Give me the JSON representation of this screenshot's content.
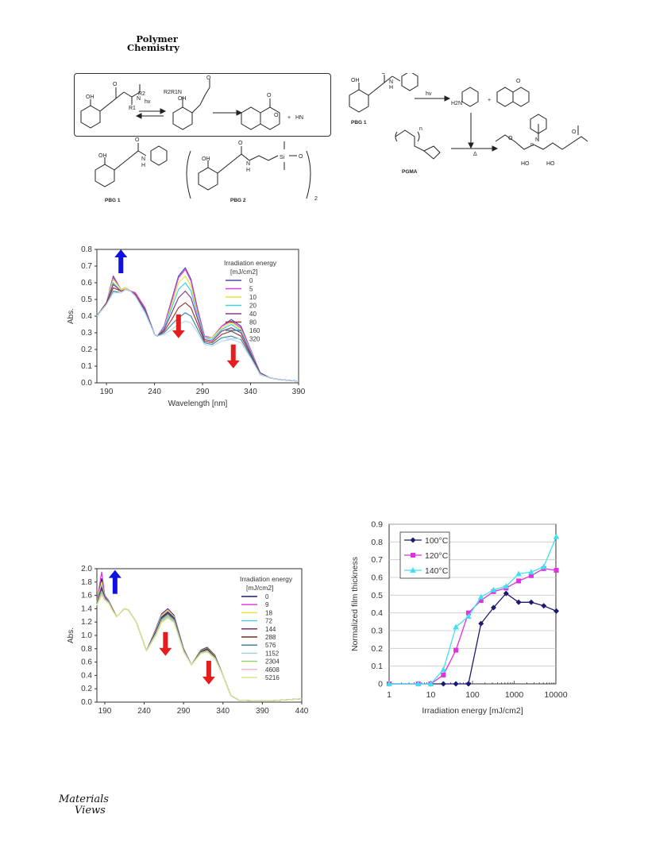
{
  "journal": {
    "line1": "Polymer",
    "line2": "Chemistry"
  },
  "scheme1": {
    "hv": "hv",
    "r2": "R2",
    "r1": "R1",
    "r2r1n": "R2R1N",
    "oh": "OH",
    "oh2": "OH",
    "o1": "O",
    "o2": "O",
    "o3": "O",
    "o4": "O",
    "n": "N",
    "plus": "+",
    "hn": "HN",
    "pbg1_oh": "OH",
    "pbg1_h": "H",
    "pbg1_n": "N",
    "pbg1_o": "O",
    "pbg1_label": "PBG 1",
    "pbg2_oh": "OH",
    "pbg2_h": "H",
    "pbg2_n": "N",
    "pbg2_o": "O",
    "pbg2_si": "Si",
    "pbg2_osi": "O",
    "pbg2_sub": "2",
    "pbg2_label": "PBG 2"
  },
  "scheme2": {
    "hv": "hv",
    "oh": "OH",
    "o": "O",
    "h": "H",
    "n": "N",
    "pbg1": "PBG 1",
    "h2n": "H2N",
    "plus": "+",
    "o2": "O",
    "pgma": "PGMA",
    "delta": "Δ",
    "n1": "n",
    "n2": "n",
    "ho1": "HO",
    "ho2": "HO",
    "n3": "N",
    "o3": "O",
    "o4": "O"
  },
  "logo": {
    "line1": "Materials",
    "line2": "Views"
  },
  "chart_data": [
    {
      "type": "line",
      "title": "",
      "xlabel": "Wavelength [nm]",
      "ylabel": "Abs.",
      "xlim": [
        180,
        390
      ],
      "ylim": [
        0,
        0.8
      ],
      "xticks": [
        190,
        240,
        290,
        340,
        390
      ],
      "yticks": [
        0,
        0.1,
        0.2,
        0.3,
        0.4,
        0.5,
        0.6,
        0.7,
        0.8
      ],
      "legend_title": "Irradiation energy [mJ/cm2]",
      "legend_placement": "top-right",
      "x": [
        180,
        190,
        197,
        205,
        210,
        215,
        220,
        230,
        240,
        243,
        250,
        258,
        265,
        272,
        278,
        285,
        292,
        300,
        310,
        320,
        330,
        340,
        350,
        360,
        370,
        390
      ],
      "series": [
        {
          "name": "0",
          "color": "#4b4ba8",
          "values": [
            0.4,
            0.48,
            0.64,
            0.56,
            0.57,
            0.55,
            0.54,
            0.45,
            0.29,
            0.28,
            0.34,
            0.5,
            0.64,
            0.69,
            0.62,
            0.44,
            0.28,
            0.27,
            0.34,
            0.38,
            0.34,
            0.2,
            0.06,
            0.03,
            0.02,
            0.01
          ]
        },
        {
          "name": "5",
          "color": "#e040e0",
          "values": [
            0.4,
            0.48,
            0.63,
            0.56,
            0.57,
            0.55,
            0.54,
            0.45,
            0.29,
            0.28,
            0.34,
            0.49,
            0.63,
            0.68,
            0.61,
            0.43,
            0.28,
            0.27,
            0.34,
            0.37,
            0.33,
            0.2,
            0.06,
            0.03,
            0.02,
            0.01
          ]
        },
        {
          "name": "10",
          "color": "#e6e63a",
          "values": [
            0.4,
            0.48,
            0.62,
            0.56,
            0.57,
            0.55,
            0.53,
            0.44,
            0.29,
            0.28,
            0.33,
            0.47,
            0.6,
            0.64,
            0.58,
            0.41,
            0.27,
            0.27,
            0.33,
            0.36,
            0.32,
            0.19,
            0.06,
            0.03,
            0.02,
            0.01
          ]
        },
        {
          "name": "20",
          "color": "#40d0e8",
          "values": [
            0.4,
            0.48,
            0.6,
            0.55,
            0.56,
            0.55,
            0.53,
            0.44,
            0.29,
            0.28,
            0.33,
            0.45,
            0.56,
            0.6,
            0.55,
            0.4,
            0.27,
            0.26,
            0.32,
            0.35,
            0.31,
            0.19,
            0.06,
            0.03,
            0.02,
            0.01
          ]
        },
        {
          "name": "40",
          "color": "#8a3c8a",
          "values": [
            0.4,
            0.48,
            0.59,
            0.55,
            0.56,
            0.55,
            0.53,
            0.44,
            0.29,
            0.28,
            0.32,
            0.42,
            0.51,
            0.55,
            0.51,
            0.38,
            0.26,
            0.25,
            0.31,
            0.33,
            0.3,
            0.18,
            0.06,
            0.03,
            0.02,
            0.01
          ]
        },
        {
          "name": "80",
          "color": "#9a3c3c",
          "values": [
            0.4,
            0.48,
            0.57,
            0.55,
            0.56,
            0.55,
            0.53,
            0.43,
            0.29,
            0.28,
            0.31,
            0.38,
            0.45,
            0.48,
            0.45,
            0.35,
            0.25,
            0.24,
            0.29,
            0.31,
            0.28,
            0.17,
            0.05,
            0.03,
            0.02,
            0.01
          ]
        },
        {
          "name": "160",
          "color": "#3a8aa0",
          "values": [
            0.4,
            0.47,
            0.55,
            0.54,
            0.56,
            0.55,
            0.52,
            0.43,
            0.29,
            0.28,
            0.3,
            0.35,
            0.39,
            0.42,
            0.4,
            0.32,
            0.24,
            0.23,
            0.27,
            0.28,
            0.26,
            0.16,
            0.05,
            0.03,
            0.02,
            0.01
          ]
        },
        {
          "name": "320",
          "color": "#b8d8f0",
          "values": [
            0.4,
            0.47,
            0.54,
            0.54,
            0.56,
            0.55,
            0.52,
            0.42,
            0.29,
            0.28,
            0.29,
            0.32,
            0.35,
            0.37,
            0.36,
            0.3,
            0.23,
            0.22,
            0.25,
            0.26,
            0.24,
            0.15,
            0.05,
            0.03,
            0.02,
            0.01
          ]
        }
      ]
    },
    {
      "type": "line",
      "title": "",
      "xlabel": "Irradiation energy [mJ/cm2]",
      "ylabel": "Normalized film thickness",
      "x_scale": "log",
      "xlim": [
        1,
        10000
      ],
      "ylim": [
        0,
        0.9
      ],
      "xticks": [
        1,
        10,
        100,
        1000,
        10000
      ],
      "yticks": [
        0,
        0.1,
        0.2,
        0.3,
        0.4,
        0.5,
        0.6,
        0.7,
        0.8,
        0.9
      ],
      "legend_placement": "top-left",
      "x": [
        1,
        5,
        10,
        20,
        40,
        80,
        160,
        320,
        640,
        1280,
        2560,
        5120,
        10240
      ],
      "series": [
        {
          "name": "100°C",
          "color": "#1a1a6e",
          "marker": "diamond",
          "values": [
            0,
            0,
            0,
            0,
            0,
            0,
            0.34,
            0.43,
            0.51,
            0.46,
            0.46,
            0.44,
            0.41
          ]
        },
        {
          "name": "120°C",
          "color": "#e030e0",
          "marker": "square",
          "values": [
            0,
            0,
            0,
            0.05,
            0.19,
            0.4,
            0.47,
            0.52,
            0.54,
            0.58,
            0.61,
            0.65,
            0.64
          ]
        },
        {
          "name": "140°C",
          "color": "#40e0f0",
          "marker": "triangle",
          "values": [
            0,
            0,
            0,
            0.08,
            0.32,
            0.38,
            0.49,
            0.53,
            0.55,
            0.62,
            0.63,
            0.66,
            0.83
          ]
        }
      ]
    },
    {
      "type": "line",
      "title": "",
      "xlabel": "Wavelength [nm]",
      "ylabel": "Abs.",
      "xlim": [
        180,
        440
      ],
      "ylim": [
        0,
        2.0
      ],
      "xticks": [
        190,
        240,
        290,
        340,
        390,
        440
      ],
      "yticks": [
        0,
        0.2,
        0.4,
        0.6,
        0.8,
        1.0,
        1.2,
        1.4,
        1.6,
        1.8,
        2.0
      ],
      "legend_title": "Irradiation energy [mJ/cm2]",
      "legend_placement": "top-right",
      "x": [
        180,
        186,
        190,
        195,
        200,
        205,
        210,
        215,
        220,
        230,
        243,
        255,
        262,
        270,
        278,
        290,
        300,
        312,
        320,
        330,
        340,
        350,
        360,
        380,
        400,
        440
      ],
      "series": [
        {
          "name": "0",
          "color": "#1a1a6e",
          "values": [
            1.5,
            1.85,
            1.6,
            1.52,
            1.4,
            1.28,
            1.34,
            1.4,
            1.38,
            1.2,
            0.77,
            1.1,
            1.32,
            1.4,
            1.3,
            0.8,
            0.56,
            0.78,
            0.82,
            0.7,
            0.4,
            0.1,
            0.03,
            0.02,
            0.02,
            0.05
          ]
        },
        {
          "name": "9",
          "color": "#e030e0",
          "values": [
            1.5,
            1.95,
            1.6,
            1.52,
            1.4,
            1.28,
            1.34,
            1.4,
            1.38,
            1.2,
            0.77,
            1.09,
            1.31,
            1.39,
            1.29,
            0.8,
            0.56,
            0.77,
            0.81,
            0.69,
            0.4,
            0.1,
            0.03,
            0.02,
            0.02,
            0.05
          ]
        },
        {
          "name": "18",
          "color": "#e6e63a",
          "values": [
            1.5,
            1.8,
            1.58,
            1.51,
            1.4,
            1.28,
            1.34,
            1.4,
            1.38,
            1.2,
            0.77,
            1.08,
            1.3,
            1.38,
            1.28,
            0.79,
            0.56,
            0.77,
            0.81,
            0.69,
            0.4,
            0.1,
            0.03,
            0.02,
            0.02,
            0.05
          ]
        },
        {
          "name": "72",
          "color": "#40d0e8",
          "values": [
            1.48,
            1.75,
            1.58,
            1.51,
            1.39,
            1.28,
            1.34,
            1.4,
            1.38,
            1.2,
            0.77,
            1.07,
            1.28,
            1.36,
            1.27,
            0.79,
            0.56,
            0.76,
            0.8,
            0.68,
            0.4,
            0.1,
            0.03,
            0.02,
            0.02,
            0.05
          ]
        },
        {
          "name": "144",
          "color": "#6a1a6a",
          "values": [
            1.48,
            1.72,
            1.57,
            1.5,
            1.39,
            1.28,
            1.34,
            1.4,
            1.38,
            1.2,
            0.77,
            1.06,
            1.27,
            1.35,
            1.26,
            0.78,
            0.56,
            0.76,
            0.8,
            0.68,
            0.4,
            0.1,
            0.03,
            0.02,
            0.02,
            0.05
          ]
        },
        {
          "name": "288",
          "color": "#7a2a2a",
          "values": [
            1.47,
            1.7,
            1.56,
            1.5,
            1.39,
            1.28,
            1.34,
            1.4,
            1.38,
            1.2,
            0.77,
            1.05,
            1.26,
            1.34,
            1.25,
            0.78,
            0.56,
            0.75,
            0.79,
            0.67,
            0.4,
            0.1,
            0.03,
            0.02,
            0.02,
            0.05
          ]
        },
        {
          "name": "576",
          "color": "#2a7a8a",
          "values": [
            1.47,
            1.68,
            1.55,
            1.5,
            1.38,
            1.28,
            1.34,
            1.4,
            1.38,
            1.2,
            0.77,
            1.04,
            1.25,
            1.32,
            1.24,
            0.77,
            0.56,
            0.75,
            0.78,
            0.67,
            0.4,
            0.1,
            0.03,
            0.02,
            0.02,
            0.05
          ]
        },
        {
          "name": "1152",
          "color": "#a0c8e8",
          "values": [
            1.46,
            1.66,
            1.55,
            1.49,
            1.38,
            1.28,
            1.34,
            1.4,
            1.38,
            1.2,
            0.77,
            1.03,
            1.23,
            1.3,
            1.22,
            0.77,
            0.56,
            0.74,
            0.77,
            0.66,
            0.4,
            0.1,
            0.03,
            0.02,
            0.02,
            0.05
          ]
        },
        {
          "name": "2304",
          "color": "#9acb6a",
          "values": [
            1.46,
            1.64,
            1.54,
            1.49,
            1.38,
            1.28,
            1.34,
            1.4,
            1.38,
            1.2,
            0.77,
            1.02,
            1.22,
            1.29,
            1.21,
            0.76,
            0.56,
            0.74,
            0.77,
            0.66,
            0.4,
            0.1,
            0.03,
            0.02,
            0.02,
            0.05
          ]
        },
        {
          "name": "4608",
          "color": "#f0b0d0",
          "values": [
            1.45,
            1.62,
            1.54,
            1.48,
            1.37,
            1.28,
            1.34,
            1.4,
            1.38,
            1.2,
            0.77,
            1.01,
            1.2,
            1.27,
            1.2,
            0.76,
            0.56,
            0.73,
            0.76,
            0.65,
            0.4,
            0.1,
            0.03,
            0.02,
            0.02,
            0.05
          ]
        },
        {
          "name": "5216",
          "color": "#d8e88a",
          "values": [
            1.45,
            1.6,
            1.53,
            1.48,
            1.37,
            1.28,
            1.34,
            1.4,
            1.38,
            1.2,
            0.77,
            1.0,
            1.19,
            1.26,
            1.19,
            0.75,
            0.56,
            0.73,
            0.75,
            0.65,
            0.4,
            0.1,
            0.03,
            0.02,
            0.02,
            0.05
          ]
        }
      ]
    }
  ]
}
